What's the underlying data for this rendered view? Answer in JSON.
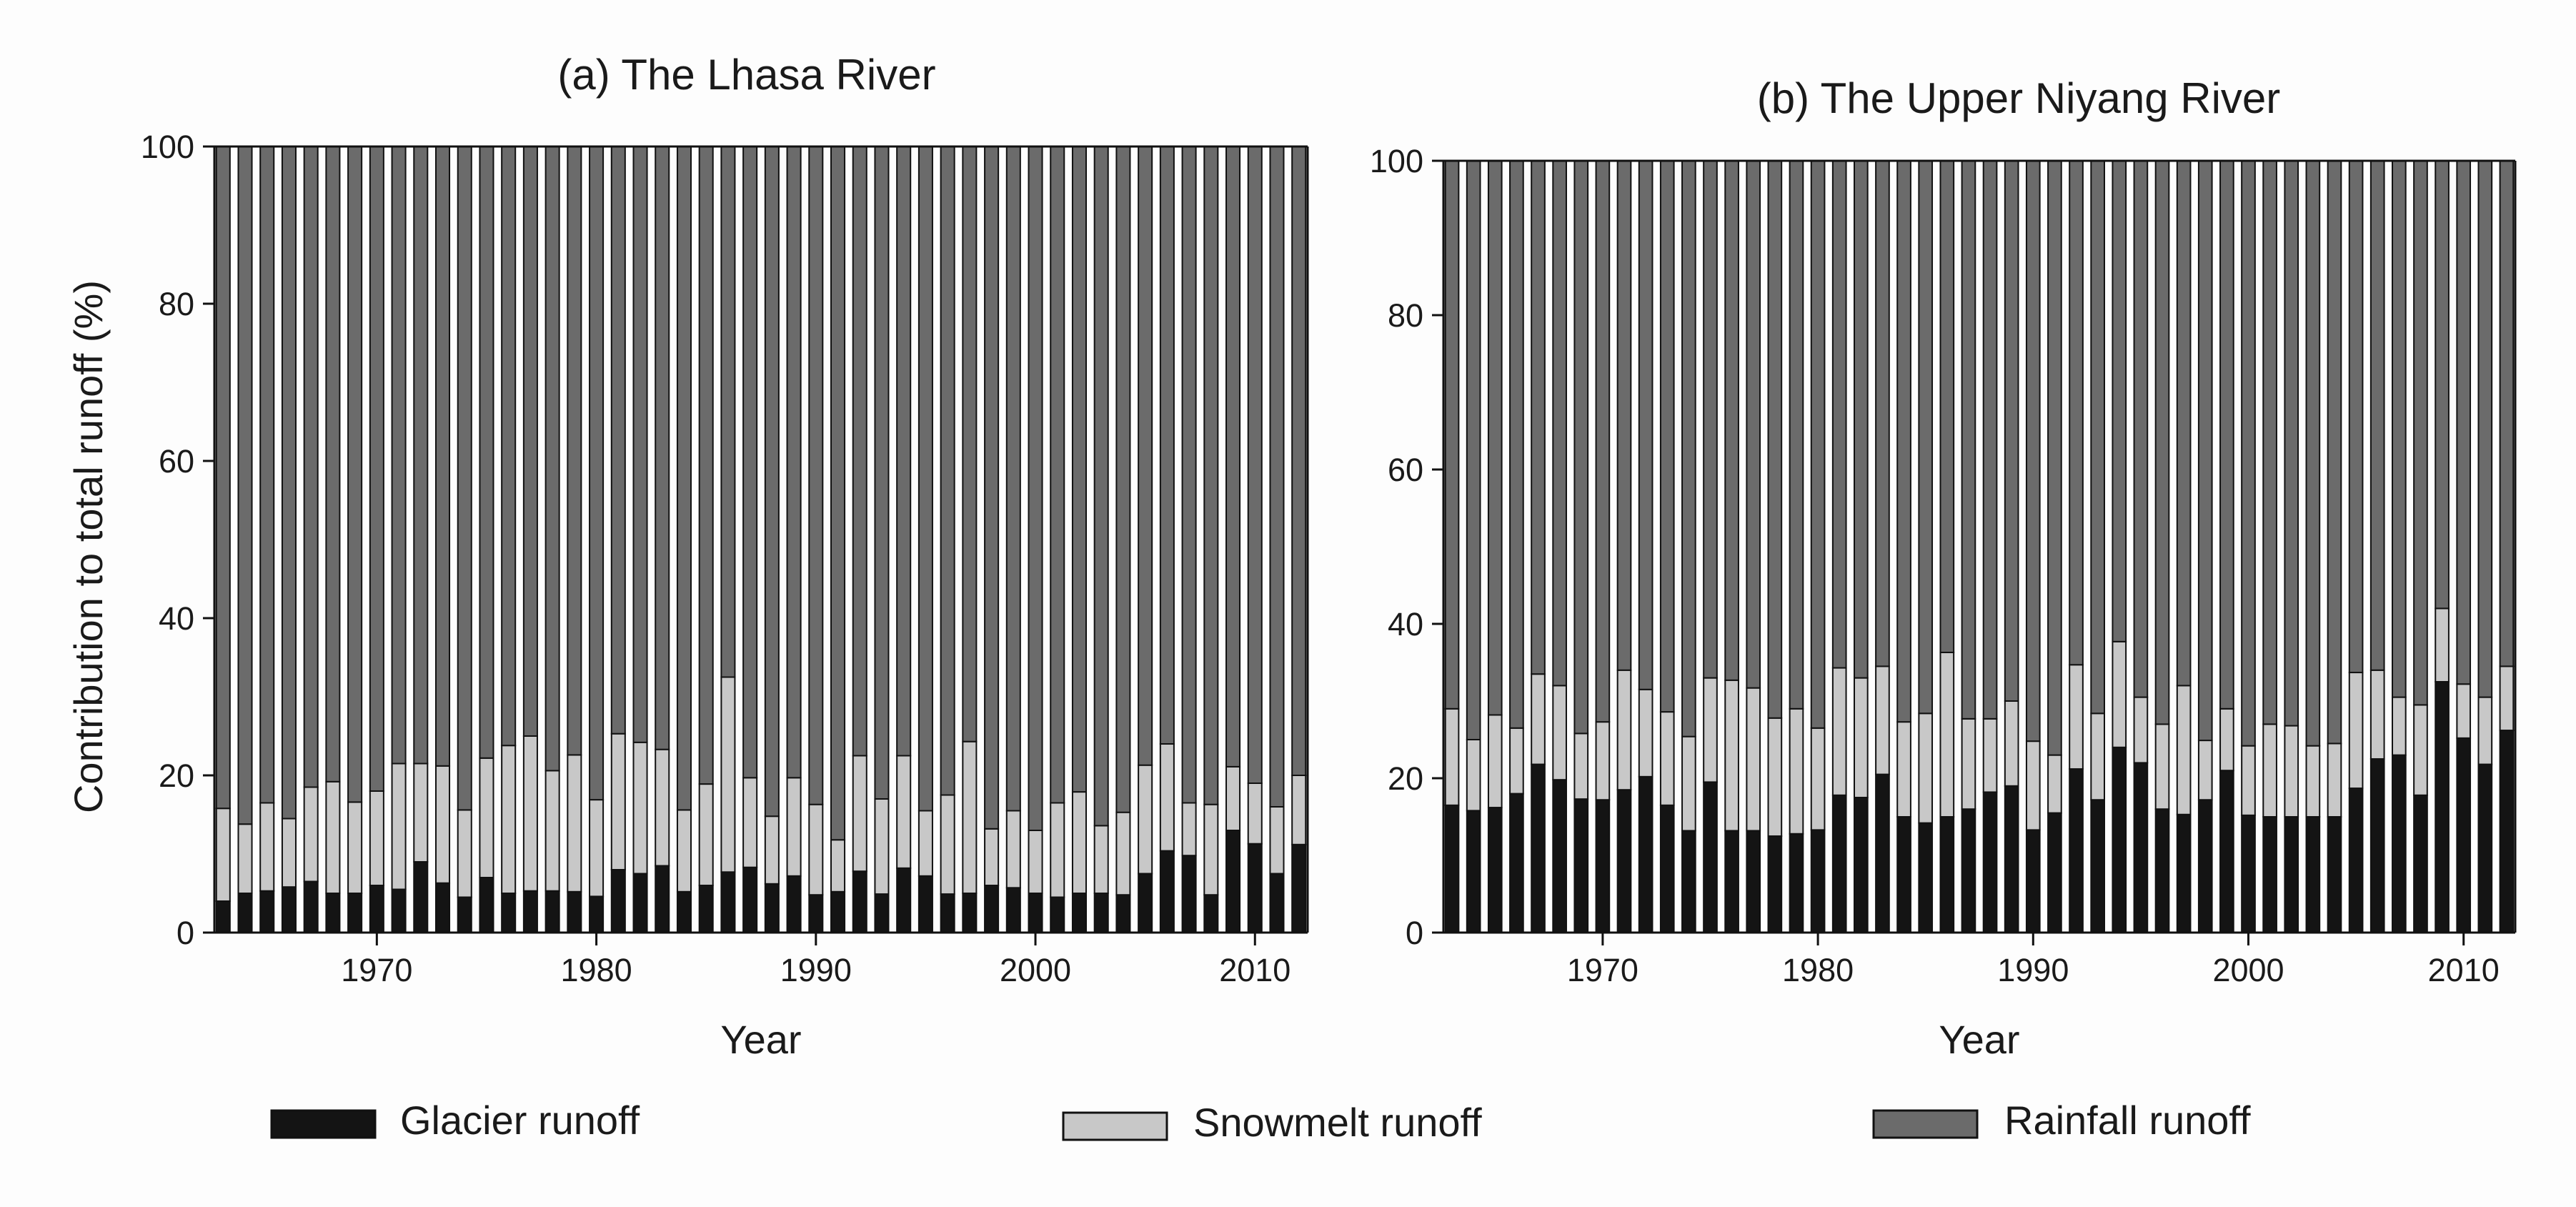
{
  "legend": {
    "items": [
      {
        "label": "Glacier runoff",
        "color": "#141414"
      },
      {
        "label": "Snowmelt runoff",
        "color": "#c8c8c8"
      },
      {
        "label": "Rainfall runoff",
        "color": "#6b6b6b"
      }
    ],
    "placement": "bottom"
  },
  "shared_ylabel": "Contribution to total runoff (%)",
  "chart_data": [
    {
      "type": "bar",
      "stacked": true,
      "title": "(a) The Lhasa River",
      "xlabel": "Year",
      "ylabel": "Contribution to total runoff (%)",
      "ylim": [
        0,
        100
      ],
      "yticks": [
        0,
        20,
        40,
        60,
        80,
        100
      ],
      "xlim": [
        1962.6,
        2012.4
      ],
      "xticks": [
        1970,
        1980,
        1990,
        2000,
        2010
      ],
      "grid": false,
      "categories": [
        1963,
        1964,
        1965,
        1966,
        1967,
        1968,
        1969,
        1970,
        1971,
        1972,
        1973,
        1974,
        1975,
        1976,
        1977,
        1978,
        1979,
        1980,
        1981,
        1982,
        1983,
        1984,
        1985,
        1986,
        1987,
        1988,
        1989,
        1990,
        1991,
        1992,
        1993,
        1994,
        1995,
        1996,
        1997,
        1998,
        1999,
        2000,
        2001,
        2002,
        2003,
        2004,
        2005,
        2006,
        2007,
        2008,
        2009,
        2010,
        2011,
        2012
      ],
      "series": [
        {
          "name": "Glacier runoff",
          "color": "#141414",
          "values": [
            4,
            5,
            5.3,
            5.8,
            6.5,
            5,
            5,
            6,
            5.5,
            9,
            6.3,
            4.5,
            7,
            5,
            5.3,
            5.3,
            5.2,
            4.6,
            8,
            7.5,
            8.5,
            5.2,
            6,
            7.7,
            8.3,
            6.2,
            7.2,
            4.8,
            5.2,
            7.8,
            4.9,
            8.2,
            7.2,
            4.9,
            5,
            6,
            5.7,
            5,
            4.5,
            5,
            5,
            4.8,
            7.5,
            10.4,
            9.8,
            4.8,
            13,
            11.3,
            7.5,
            11.2
          ]
        },
        {
          "name": "Snowmelt runoff",
          "color": "#c8c8c8",
          "values": [
            11.8,
            8.8,
            11.2,
            8.7,
            12,
            14.2,
            11.6,
            12,
            16,
            12.5,
            14.9,
            11.1,
            15.2,
            18.8,
            19.7,
            15.3,
            17.4,
            12.3,
            17.3,
            16.7,
            14.8,
            10.4,
            12.9,
            24.8,
            11.4,
            8.6,
            12.5,
            11.5,
            6.6,
            14.7,
            12.1,
            14.3,
            8.3,
            12.6,
            19.3,
            7.2,
            9.8,
            8,
            12,
            12.9,
            8.6,
            10.5,
            13.8,
            13.6,
            6.7,
            11.5,
            8.1,
            7.7,
            8.5,
            8.8
          ]
        },
        {
          "name": "Rainfall runoff",
          "color": "#6b6b6b",
          "values": [
            84.2,
            86.2,
            83.5,
            85.5,
            81.5,
            80.8,
            83.4,
            82,
            78.5,
            78.5,
            78.8,
            84.4,
            77.8,
            76.2,
            75,
            79.4,
            77.4,
            83.1,
            74.7,
            75.8,
            76.7,
            84.4,
            81.1,
            67.5,
            80.3,
            85.2,
            80.3,
            83.7,
            88.2,
            77.5,
            83,
            77.5,
            84.5,
            82.5,
            75.7,
            86.8,
            84.5,
            87,
            83.5,
            82.1,
            86.4,
            84.7,
            78.7,
            76,
            83.5,
            83.7,
            78.9,
            81,
            84,
            80
          ]
        }
      ]
    },
    {
      "type": "bar",
      "stacked": true,
      "title": "(b) The Upper Niyang River",
      "xlabel": "Year",
      "ylabel": "",
      "ylim": [
        0,
        100
      ],
      "yticks": [
        0,
        20,
        40,
        60,
        80,
        100
      ],
      "xlim": [
        1962.6,
        2012.4
      ],
      "xticks": [
        1970,
        1980,
        1990,
        2000,
        2010
      ],
      "grid": false,
      "categories": [
        1963,
        1964,
        1965,
        1966,
        1967,
        1968,
        1969,
        1970,
        1971,
        1972,
        1973,
        1974,
        1975,
        1976,
        1977,
        1978,
        1979,
        1980,
        1981,
        1982,
        1983,
        1984,
        1985,
        1986,
        1987,
        1988,
        1989,
        1990,
        1991,
        1992,
        1993,
        1994,
        1995,
        1996,
        1997,
        1998,
        1999,
        2000,
        2001,
        2002,
        2003,
        2004,
        2005,
        2006,
        2007,
        2008,
        2009,
        2010,
        2011,
        2012
      ],
      "series": [
        {
          "name": "Glacier runoff",
          "color": "#141414",
          "values": [
            16.5,
            15.8,
            16.2,
            18,
            21.8,
            19.8,
            17.3,
            17.2,
            18.5,
            20.2,
            16.5,
            13.2,
            19.5,
            13.2,
            13.2,
            12.5,
            12.8,
            13.3,
            17.8,
            17.5,
            20.5,
            15,
            14.2,
            15,
            16,
            18.2,
            19,
            13.3,
            15.5,
            21.2,
            17.2,
            24,
            22,
            16,
            15.3,
            17.2,
            21,
            15.2,
            15,
            15,
            15,
            15,
            18.7,
            22.5,
            23,
            17.8,
            32.5,
            25.2,
            21.8,
            26.2
          ]
        },
        {
          "name": "Snowmelt runoff",
          "color": "#c8c8c8",
          "values": [
            12.5,
            9.2,
            12,
            8.5,
            11.7,
            12.2,
            8.5,
            10.1,
            15.5,
            11.3,
            12.1,
            12.2,
            13.5,
            19.5,
            18.5,
            15.3,
            16.2,
            13.2,
            16.5,
            15.5,
            14,
            12.3,
            14.2,
            21.3,
            11.7,
            9.5,
            11,
            11.5,
            7.5,
            13.5,
            11.2,
            13.7,
            8.5,
            11,
            16.7,
            7.7,
            8,
            9,
            12,
            11.8,
            9.2,
            9.5,
            15,
            11.5,
            7.5,
            11.7,
            9.5,
            7,
            8.7,
            8.3
          ]
        },
        {
          "name": "Rainfall runoff",
          "color": "#6b6b6b",
          "values": [
            71,
            75,
            71.8,
            73.5,
            66.5,
            68,
            74.2,
            72.7,
            66,
            68.5,
            71.4,
            74.6,
            67,
            67.3,
            68.3,
            72.2,
            71,
            73.5,
            65.7,
            67,
            65.5,
            72.7,
            71.6,
            63.7,
            72.3,
            72.3,
            70,
            75.2,
            77,
            65.3,
            71.6,
            62.3,
            69.5,
            73,
            68,
            75.1,
            71,
            75.8,
            73,
            73.2,
            75.8,
            75.5,
            66.3,
            66,
            69.5,
            70.5,
            58,
            67.8,
            69.5,
            65.5
          ]
        }
      ]
    }
  ]
}
